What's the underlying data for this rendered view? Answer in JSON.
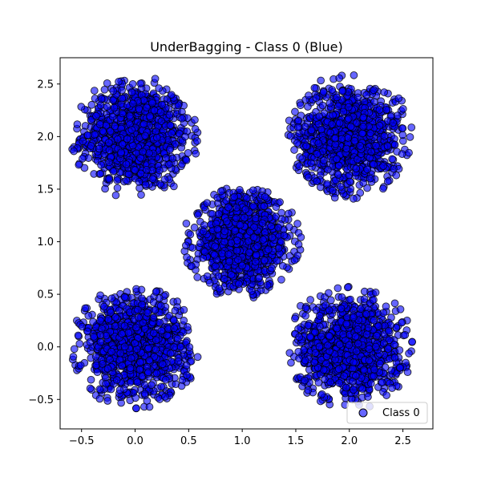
{
  "chart_data": {
    "type": "scatter",
    "title": "UnderBagging - Class 0 (Blue)",
    "xlabel": "",
    "ylabel": "",
    "xlim": [
      -0.7,
      2.78
    ],
    "ylim": [
      -0.78,
      2.75
    ],
    "xticks": [
      -0.5,
      0.0,
      0.5,
      1.0,
      1.5,
      2.0,
      2.5
    ],
    "xtick_labels": [
      "−0.5",
      "0.0",
      "0.5",
      "1.0",
      "1.5",
      "2.0",
      "2.5"
    ],
    "yticks": [
      -0.5,
      0.0,
      0.5,
      1.0,
      1.5,
      2.0,
      2.5
    ],
    "ytick_labels": [
      "−0.5",
      "0.0",
      "0.5",
      "1.0",
      "1.5",
      "2.0",
      "2.5"
    ],
    "grid": false,
    "legend_position": "lower-right",
    "series": [
      {
        "name": "Class 0",
        "color": "#0000ff",
        "edgecolor": "#000000",
        "alpha": 0.6,
        "clusters": [
          {
            "center": [
              0.0,
              2.0
            ],
            "radius": 0.6,
            "points_per_cluster": 1000
          },
          {
            "center": [
              2.0,
              2.0
            ],
            "radius": 0.6,
            "points_per_cluster": 1000
          },
          {
            "center": [
              1.0,
              1.0
            ],
            "radius": 0.55,
            "points_per_cluster": 1000
          },
          {
            "center": [
              0.0,
              0.0
            ],
            "radius": 0.6,
            "points_per_cluster": 1000
          },
          {
            "center": [
              2.0,
              0.0
            ],
            "radius": 0.6,
            "points_per_cluster": 1000
          }
        ]
      }
    ]
  }
}
